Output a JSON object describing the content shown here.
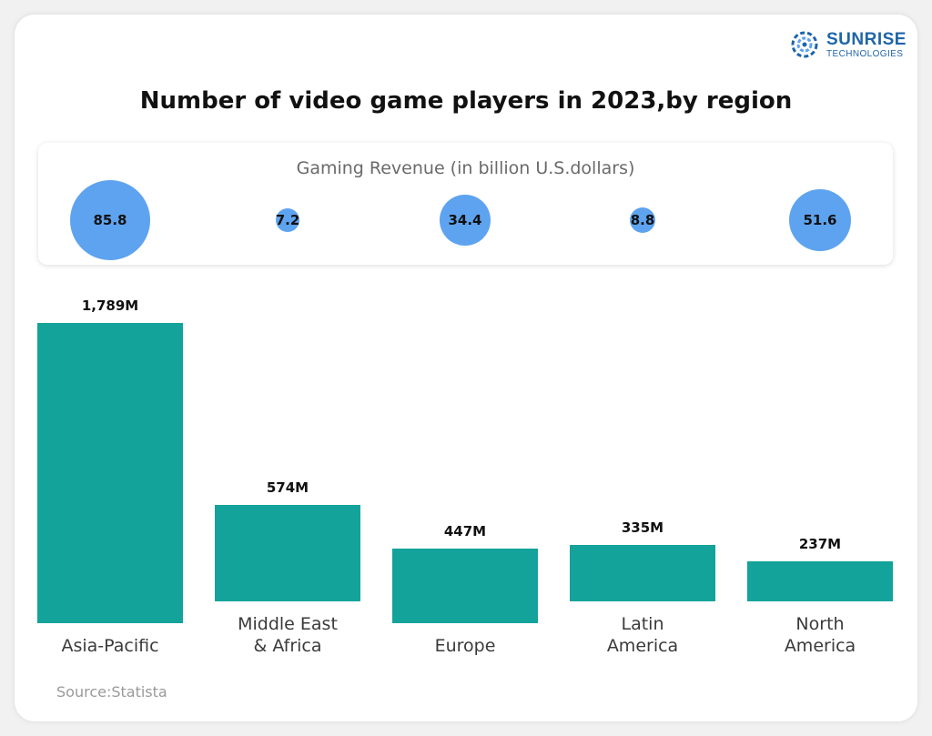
{
  "logo": {
    "name": "SUNRISE",
    "tagline": "TECHNOLOGIES"
  },
  "title": "Number of video game players in 2023,by region",
  "revenue_title": "Gaming Revenue (in billion U.S.dollars)",
  "source": "Source:Statista",
  "colors": {
    "bars": "#13a39b",
    "bubbles": "#5ea3ef",
    "logo": "#1f65a8"
  },
  "chart_data": [
    {
      "type": "scatter",
      "title": "Gaming Revenue (in billion U.S.dollars)",
      "categories": [
        "Asia-Pacific",
        "Middle East & Africa",
        "Europe",
        "Latin America",
        "North America"
      ],
      "values": [
        85.8,
        7.2,
        34.4,
        8.8,
        51.6
      ],
      "labels": [
        "85.8",
        "7.2",
        "34.4",
        "8.8",
        "51.6"
      ]
    },
    {
      "type": "bar",
      "title": "Number of video game players in 2023,by region",
      "categories": [
        "Asia-Pacific",
        "Middle East & Africa",
        "Europe",
        "Latin America",
        "North America"
      ],
      "category_lines": [
        [
          "Asia-Pacific"
        ],
        [
          "Middle East",
          "& Africa"
        ],
        [
          "Europe"
        ],
        [
          "Latin",
          "America"
        ],
        [
          "North",
          "America"
        ]
      ],
      "values": [
        1789,
        574,
        447,
        335,
        237
      ],
      "labels": [
        "1,789M",
        "574M",
        "447M",
        "335M",
        "237M"
      ],
      "ylim": [
        0,
        1789
      ]
    }
  ]
}
